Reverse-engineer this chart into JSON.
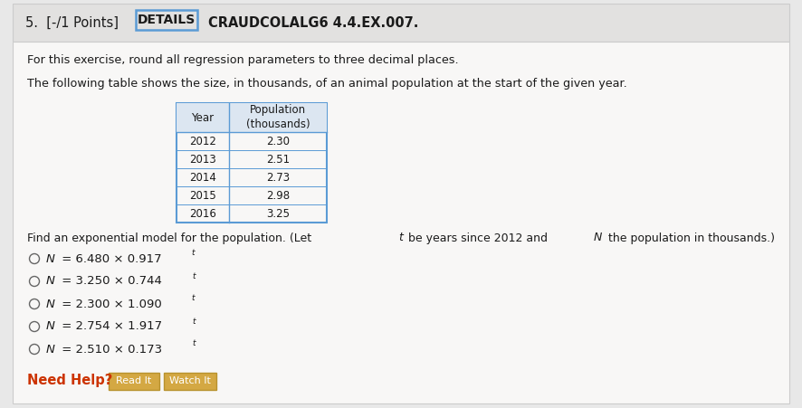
{
  "title_number": "5.  [-/1 Points]",
  "details_label": "DETAILS",
  "course_code": "CRAUDCOLALG6 4.4.EX.007.",
  "instruction1": "For this exercise, round all regression parameters to three decimal places.",
  "instruction2": "The following table shows the size, in thousands, of an animal population at the start of the given year.",
  "table_headers": [
    "Year",
    "Population\n(thousands)"
  ],
  "table_data": [
    [
      "2012",
      "2.30"
    ],
    [
      "2013",
      "2.51"
    ],
    [
      "2014",
      "2.73"
    ],
    [
      "2015",
      "2.98"
    ],
    [
      "2016",
      "3.25"
    ]
  ],
  "options": [
    {
      "label": "N",
      "eq": " = 6.480 × 0.917",
      "sup": "t"
    },
    {
      "label": "N",
      "eq": " = 3.250 × 0.744",
      "sup": "t"
    },
    {
      "label": "N",
      "eq": " = 2.300 × 1.090",
      "sup": "t"
    },
    {
      "label": "N",
      "eq": " = 2.754 × 1.917",
      "sup": "t"
    },
    {
      "label": "N",
      "eq": " = 2.510 × 0.173",
      "sup": "t"
    }
  ],
  "need_help_text": "Need Help?",
  "btn1": "Read It",
  "btn2": "Watch It",
  "bg_color": "#e8e8e8",
  "panel_color": "#f0efee",
  "inner_panel_color": "#f8f7f6",
  "table_border_color": "#5b9bd5",
  "table_header_bg": "#dce6f1",
  "details_btn_border": "#5b9bd5",
  "need_help_color": "#cc3300",
  "btn_bg": "#d4a843",
  "btn_border": "#b8922e",
  "btn_text_color": "#ffffff",
  "text_color": "#1a1a1a",
  "header_sep_color": "#cccccc",
  "header_bg": "#e2e1e0"
}
